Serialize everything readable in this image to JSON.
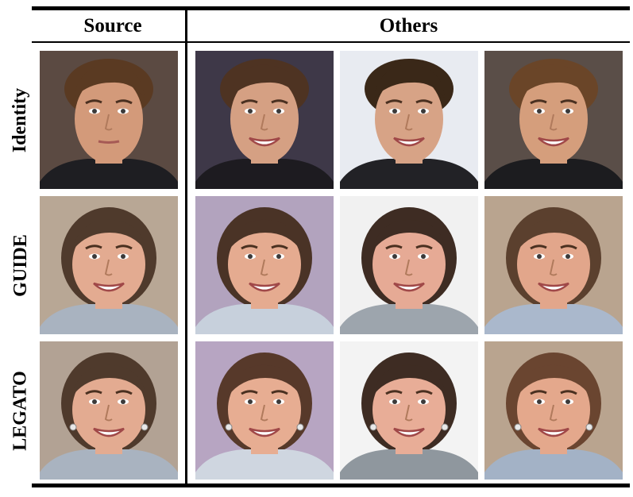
{
  "headers": {
    "source": "Source",
    "others": "Others"
  },
  "rows": [
    {
      "label": "Identity"
    },
    {
      "label": "GUIDE"
    },
    {
      "label": "LEGATO"
    }
  ],
  "palette": {
    "rule": "#000000",
    "skin_male": "#d9a17f",
    "skin_female": "#e6ad92",
    "hair_male": "#5a3a22",
    "hair_female": "#4a3428"
  },
  "cells": [
    [
      {
        "column": "Source",
        "subject": "male-face",
        "expression": "neutral",
        "bg": "#5b4a42",
        "skin": "#d39a7a",
        "hair": "#5a3a22",
        "shirt": "#1e1e22",
        "earrings": false
      },
      {
        "column": "Others",
        "subject": "male-face",
        "expression": "smile",
        "bg": "#3e3848",
        "skin": "#d5a083",
        "hair": "#4e3322",
        "shirt": "#1d1b20",
        "earrings": false
      },
      {
        "column": "Others",
        "subject": "male-face",
        "expression": "smile",
        "bg": "#e8ebf1",
        "skin": "#d7a386",
        "hair": "#3a2818",
        "shirt": "#222226",
        "earrings": false
      },
      {
        "column": "Others",
        "subject": "male-face",
        "expression": "smile",
        "bg": "#5a4e48",
        "skin": "#d59e7c",
        "hair": "#6a4528",
        "shirt": "#1c1c1f",
        "earrings": false
      }
    ],
    [
      {
        "column": "Source",
        "subject": "female-face",
        "expression": "smile",
        "bg": "#b8a795",
        "skin": "#e3ab91",
        "hair": "#4f3a2c",
        "shirt": "#a9b3c0",
        "earrings": false
      },
      {
        "column": "Others",
        "subject": "female-face",
        "expression": "smile",
        "bg": "#b2a3be",
        "skin": "#e5ab90",
        "hair": "#4a3326",
        "shirt": "#c7d0dc",
        "earrings": false
      },
      {
        "column": "Others",
        "subject": "female-face",
        "expression": "smile",
        "bg": "#f1f1f1",
        "skin": "#e6aa95",
        "hair": "#3e2c23",
        "shirt": "#9da5ad",
        "earrings": false
      },
      {
        "column": "Others",
        "subject": "female-face",
        "expression": "smile",
        "bg": "#b9a48f",
        "skin": "#e2a68b",
        "hair": "#5b402e",
        "shirt": "#aab8cc",
        "earrings": false
      }
    ],
    [
      {
        "column": "Source",
        "subject": "female-face",
        "expression": "smile",
        "bg": "#b2a294",
        "skin": "#e3ab91",
        "hair": "#4f3a2c",
        "shirt": "#a9b3c0",
        "earrings": true
      },
      {
        "column": "Others",
        "subject": "female-face",
        "expression": "smile",
        "bg": "#b7a5c2",
        "skin": "#e7ad92",
        "hair": "#57392a",
        "shirt": "#cfd6e0",
        "earrings": true
      },
      {
        "column": "Others",
        "subject": "female-face",
        "expression": "smile",
        "bg": "#f3f3f3",
        "skin": "#e8ad97",
        "hair": "#3e2c23",
        "shirt": "#8f979e",
        "earrings": true
      },
      {
        "column": "Others",
        "subject": "female-face",
        "expression": "smile",
        "bg": "#b9a48f",
        "skin": "#e4a88c",
        "hair": "#6a4530",
        "shirt": "#a3b2c6",
        "earrings": true
      }
    ]
  ]
}
